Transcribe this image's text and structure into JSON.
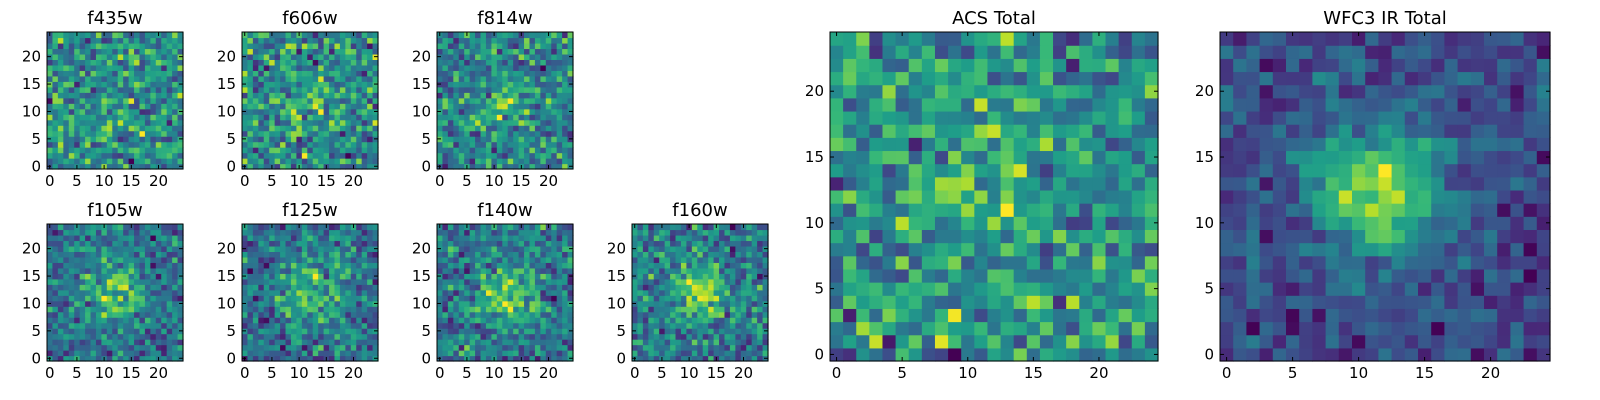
{
  "chart_data": [
    {
      "type": "heatmap",
      "title": "f435w",
      "grid_size": 25,
      "xlim": [
        0,
        24
      ],
      "ylim": [
        0,
        24
      ],
      "xticks": [
        0,
        5,
        10,
        15,
        20
      ],
      "yticks": [
        0,
        5,
        10,
        15,
        20
      ],
      "center": [
        12,
        12
      ],
      "peak_strength": 0.1,
      "sigma": 4,
      "noise": 0.9,
      "seed": 11,
      "colormap": "viridis"
    },
    {
      "type": "heatmap",
      "title": "f606w",
      "grid_size": 25,
      "xlim": [
        0,
        24
      ],
      "ylim": [
        0,
        24
      ],
      "xticks": [
        0,
        5,
        10,
        15,
        20
      ],
      "yticks": [
        0,
        5,
        10,
        15,
        20
      ],
      "center": [
        12,
        12
      ],
      "peak_strength": 0.25,
      "sigma": 4,
      "noise": 0.75,
      "seed": 23,
      "colormap": "viridis"
    },
    {
      "type": "heatmap",
      "title": "f814w",
      "grid_size": 25,
      "xlim": [
        0,
        24
      ],
      "ylim": [
        0,
        24
      ],
      "xticks": [
        0,
        5,
        10,
        15,
        20
      ],
      "yticks": [
        0,
        5,
        10,
        15,
        20
      ],
      "center": [
        12,
        12
      ],
      "peak_strength": 0.45,
      "sigma": 3,
      "noise": 0.7,
      "seed": 37,
      "colormap": "viridis"
    },
    {
      "type": "heatmap",
      "title": "f105w",
      "grid_size": 25,
      "xlim": [
        0,
        24
      ],
      "ylim": [
        0,
        24
      ],
      "xticks": [
        0,
        5,
        10,
        15,
        20
      ],
      "yticks": [
        0,
        5,
        10,
        15,
        20
      ],
      "center": [
        12,
        12
      ],
      "peak_strength": 0.6,
      "sigma": 3.5,
      "noise": 0.45,
      "seed": 41,
      "colormap": "viridis"
    },
    {
      "type": "heatmap",
      "title": "f125w",
      "grid_size": 25,
      "xlim": [
        0,
        24
      ],
      "ylim": [
        0,
        24
      ],
      "xticks": [
        0,
        5,
        10,
        15,
        20
      ],
      "yticks": [
        0,
        5,
        10,
        15,
        20
      ],
      "center": [
        12,
        12
      ],
      "peak_strength": 0.55,
      "sigma": 4,
      "noise": 0.5,
      "seed": 53,
      "colormap": "viridis"
    },
    {
      "type": "heatmap",
      "title": "f140w",
      "grid_size": 25,
      "xlim": [
        0,
        24
      ],
      "ylim": [
        0,
        24
      ],
      "xticks": [
        0,
        5,
        10,
        15,
        20
      ],
      "yticks": [
        0,
        5,
        10,
        15,
        20
      ],
      "center": [
        12,
        12
      ],
      "peak_strength": 0.6,
      "sigma": 3.5,
      "noise": 0.45,
      "seed": 67,
      "colormap": "viridis"
    },
    {
      "type": "heatmap",
      "title": "f160w",
      "grid_size": 25,
      "xlim": [
        0,
        24
      ],
      "ylim": [
        0,
        24
      ],
      "xticks": [
        0,
        5,
        10,
        15,
        20
      ],
      "yticks": [
        0,
        5,
        10,
        15,
        20
      ],
      "center": [
        12,
        12
      ],
      "peak_strength": 0.65,
      "sigma": 3,
      "noise": 0.45,
      "seed": 79,
      "colormap": "viridis"
    },
    {
      "type": "heatmap",
      "title": "ACS Total",
      "grid_size": 25,
      "xlim": [
        0,
        24
      ],
      "ylim": [
        0,
        24
      ],
      "xticks": [
        0,
        5,
        10,
        15,
        20
      ],
      "yticks": [
        0,
        5,
        10,
        15,
        20
      ],
      "center": [
        11,
        12
      ],
      "peak_strength": 0.4,
      "sigma": 2,
      "noise": 0.6,
      "seed": 97,
      "colormap": "viridis"
    },
    {
      "type": "heatmap",
      "title": "WFC3 IR Total",
      "grid_size": 25,
      "xlim": [
        0,
        24
      ],
      "ylim": [
        0,
        24
      ],
      "xticks": [
        0,
        5,
        10,
        15,
        20
      ],
      "yticks": [
        0,
        5,
        10,
        15,
        20
      ],
      "center": [
        11.5,
        12.5
      ],
      "peak_strength": 1.0,
      "sigma": 3.5,
      "noise": 0.3,
      "seed": 131,
      "colormap": "viridis"
    }
  ]
}
